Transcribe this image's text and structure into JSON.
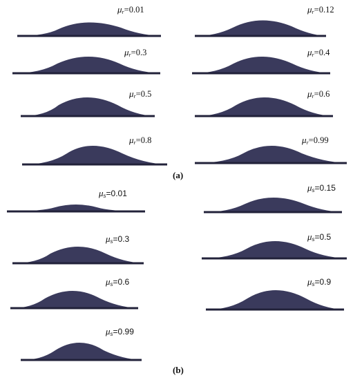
{
  "panel_a": {
    "caption": "(a)",
    "symbol": "μ",
    "subscript": "r",
    "items": [
      {
        "value": "=0.01"
      },
      {
        "value": "=0.12"
      },
      {
        "value": "=0.3"
      },
      {
        "value": "=0.4"
      },
      {
        "value": "=0.5"
      },
      {
        "value": "=0.6"
      },
      {
        "value": "=0.8"
      },
      {
        "value": "=0.99"
      }
    ]
  },
  "panel_b": {
    "caption": "(b)",
    "symbol": "μ",
    "subscript": "s",
    "items": [
      {
        "value": "=0.01"
      },
      {
        "value": "=0.15"
      },
      {
        "value": "=0.3"
      },
      {
        "value": "=0.5"
      },
      {
        "value": "=0.6"
      },
      {
        "value": "=0.9"
      },
      {
        "value": "=0.99"
      }
    ]
  },
  "colors": {
    "particle_fill": "#3a3a5c",
    "particle_dark": "#22223a"
  }
}
